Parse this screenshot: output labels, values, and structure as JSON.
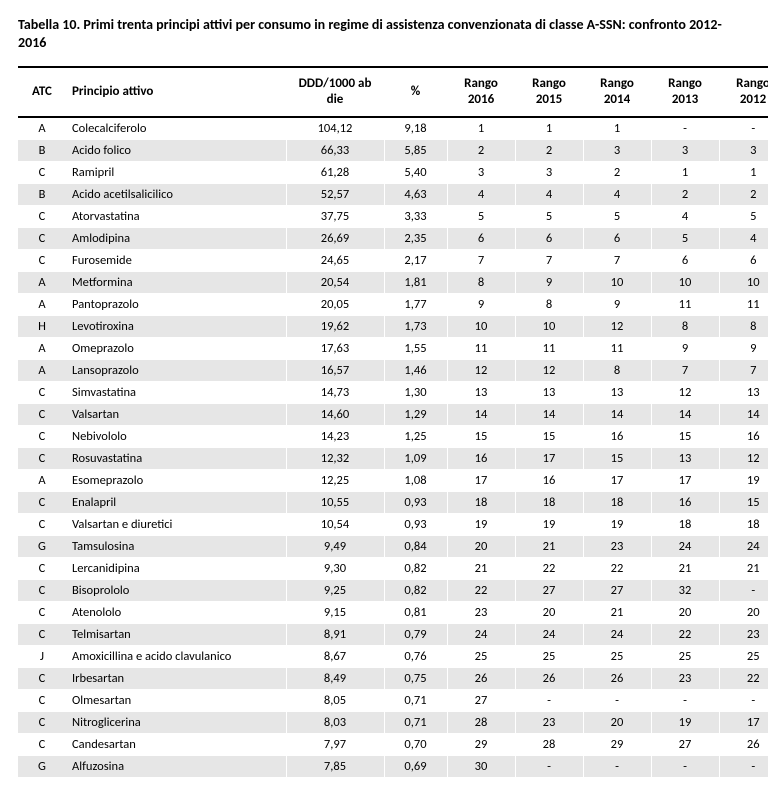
{
  "title": "Tabella 10. Primi trenta principi attivi per consumo in regime di assistenza convenzionata di classe A-SSN: confronto 2012-2016",
  "columns": {
    "atc": "ATC",
    "name": "Principio attivo",
    "ddd": "DDD/1000 ab die",
    "pct": "%",
    "r2016": "Rango 2016",
    "r2015": "Rango 2015",
    "r2014": "Rango 2014",
    "r2013": "Rango 2013",
    "r2012": "Rango 2012"
  },
  "rows": [
    {
      "atc": "A",
      "name": "Colecalciferolo",
      "ddd": "104,12",
      "pct": "9,18",
      "r2016": "1",
      "r2015": "1",
      "r2014": "1",
      "r2013": "-",
      "r2012": "-"
    },
    {
      "atc": "B",
      "name": "Acido folico",
      "ddd": "66,33",
      "pct": "5,85",
      "r2016": "2",
      "r2015": "2",
      "r2014": "3",
      "r2013": "3",
      "r2012": "3"
    },
    {
      "atc": "C",
      "name": "Ramipril",
      "ddd": "61,28",
      "pct": "5,40",
      "r2016": "3",
      "r2015": "3",
      "r2014": "2",
      "r2013": "1",
      "r2012": "1"
    },
    {
      "atc": "B",
      "name": "Acido acetilsalicilico",
      "ddd": "52,57",
      "pct": "4,63",
      "r2016": "4",
      "r2015": "4",
      "r2014": "4",
      "r2013": "2",
      "r2012": "2"
    },
    {
      "atc": "C",
      "name": "Atorvastatina",
      "ddd": "37,75",
      "pct": "3,33",
      "r2016": "5",
      "r2015": "5",
      "r2014": "5",
      "r2013": "4",
      "r2012": "5"
    },
    {
      "atc": "C",
      "name": "Amlodipina",
      "ddd": "26,69",
      "pct": "2,35",
      "r2016": "6",
      "r2015": "6",
      "r2014": "6",
      "r2013": "5",
      "r2012": "4"
    },
    {
      "atc": "C",
      "name": "Furosemide",
      "ddd": "24,65",
      "pct": "2,17",
      "r2016": "7",
      "r2015": "7",
      "r2014": "7",
      "r2013": "6",
      "r2012": "6"
    },
    {
      "atc": "A",
      "name": "Metformina",
      "ddd": "20,54",
      "pct": "1,81",
      "r2016": "8",
      "r2015": "9",
      "r2014": "10",
      "r2013": "10",
      "r2012": "10"
    },
    {
      "atc": "A",
      "name": "Pantoprazolo",
      "ddd": "20,05",
      "pct": "1,77",
      "r2016": "9",
      "r2015": "8",
      "r2014": "9",
      "r2013": "11",
      "r2012": "11"
    },
    {
      "atc": "H",
      "name": "Levotiroxina",
      "ddd": "19,62",
      "pct": "1,73",
      "r2016": "10",
      "r2015": "10",
      "r2014": "12",
      "r2013": "8",
      "r2012": "8"
    },
    {
      "atc": "A",
      "name": "Omeprazolo",
      "ddd": "17,63",
      "pct": "1,55",
      "r2016": "11",
      "r2015": "11",
      "r2014": "11",
      "r2013": "9",
      "r2012": "9"
    },
    {
      "atc": "A",
      "name": "Lansoprazolo",
      "ddd": "16,57",
      "pct": "1,46",
      "r2016": "12",
      "r2015": "12",
      "r2014": "8",
      "r2013": "7",
      "r2012": "7"
    },
    {
      "atc": "C",
      "name": "Simvastatina",
      "ddd": "14,73",
      "pct": "1,30",
      "r2016": "13",
      "r2015": "13",
      "r2014": "13",
      "r2013": "12",
      "r2012": "13"
    },
    {
      "atc": "C",
      "name": "Valsartan",
      "ddd": "14,60",
      "pct": "1,29",
      "r2016": "14",
      "r2015": "14",
      "r2014": "14",
      "r2013": "14",
      "r2012": "14"
    },
    {
      "atc": "C",
      "name": "Nebivololo",
      "ddd": "14,23",
      "pct": "1,25",
      "r2016": "15",
      "r2015": "15",
      "r2014": "16",
      "r2013": "15",
      "r2012": "16"
    },
    {
      "atc": "C",
      "name": "Rosuvastatina",
      "ddd": "12,32",
      "pct": "1,09",
      "r2016": "16",
      "r2015": "17",
      "r2014": "15",
      "r2013": "13",
      "r2012": "12"
    },
    {
      "atc": "A",
      "name": "Esomeprazolo",
      "ddd": "12,25",
      "pct": "1,08",
      "r2016": "17",
      "r2015": "16",
      "r2014": "17",
      "r2013": "17",
      "r2012": "19"
    },
    {
      "atc": "C",
      "name": "Enalapril",
      "ddd": "10,55",
      "pct": "0,93",
      "r2016": "18",
      "r2015": "18",
      "r2014": "18",
      "r2013": "16",
      "r2012": "15"
    },
    {
      "atc": "C",
      "name": "Valsartan e diuretici",
      "ddd": "10,54",
      "pct": "0,93",
      "r2016": "19",
      "r2015": "19",
      "r2014": "19",
      "r2013": "18",
      "r2012": "18"
    },
    {
      "atc": "G",
      "name": "Tamsulosina",
      "ddd": "9,49",
      "pct": "0,84",
      "r2016": "20",
      "r2015": "21",
      "r2014": "23",
      "r2013": "24",
      "r2012": "24"
    },
    {
      "atc": "C",
      "name": "Lercanidipina",
      "ddd": "9,30",
      "pct": "0,82",
      "r2016": "21",
      "r2015": "22",
      "r2014": "22",
      "r2013": "21",
      "r2012": "21"
    },
    {
      "atc": "C",
      "name": "Bisoprololo",
      "ddd": "9,25",
      "pct": "0,82",
      "r2016": "22",
      "r2015": "27",
      "r2014": "27",
      "r2013": "32",
      "r2012": "-"
    },
    {
      "atc": "C",
      "name": "Atenololo",
      "ddd": "9,15",
      "pct": "0,81",
      "r2016": "23",
      "r2015": "20",
      "r2014": "21",
      "r2013": "20",
      "r2012": "20"
    },
    {
      "atc": "C",
      "name": "Telmisartan",
      "ddd": "8,91",
      "pct": "0,79",
      "r2016": "24",
      "r2015": "24",
      "r2014": "24",
      "r2013": "22",
      "r2012": "23"
    },
    {
      "atc": "J",
      "name": "Amoxicillina e acido clavulanico",
      "ddd": "8,67",
      "pct": "0,76",
      "r2016": "25",
      "r2015": "25",
      "r2014": "25",
      "r2013": "25",
      "r2012": "25"
    },
    {
      "atc": "C",
      "name": "Irbesartan",
      "ddd": "8,49",
      "pct": "0,75",
      "r2016": "26",
      "r2015": "26",
      "r2014": "26",
      "r2013": "23",
      "r2012": "22"
    },
    {
      "atc": "C",
      "name": "Olmesartan",
      "ddd": "8,05",
      "pct": "0,71",
      "r2016": "27",
      "r2015": "-",
      "r2014": "-",
      "r2013": "-",
      "r2012": "-"
    },
    {
      "atc": "C",
      "name": "Nitroglicerina",
      "ddd": "8,03",
      "pct": "0,71",
      "r2016": "28",
      "r2015": "23",
      "r2014": "20",
      "r2013": "19",
      "r2012": "17"
    },
    {
      "atc": "C",
      "name": "Candesartan",
      "ddd": "7,97",
      "pct": "0,70",
      "r2016": "29",
      "r2015": "28",
      "r2014": "29",
      "r2013": "27",
      "r2012": "26"
    },
    {
      "atc": "G",
      "name": "Alfuzosina",
      "ddd": "7,85",
      "pct": "0,69",
      "r2016": "30",
      "r2015": "-",
      "r2014": "-",
      "r2013": "-",
      "r2012": "-"
    }
  ]
}
